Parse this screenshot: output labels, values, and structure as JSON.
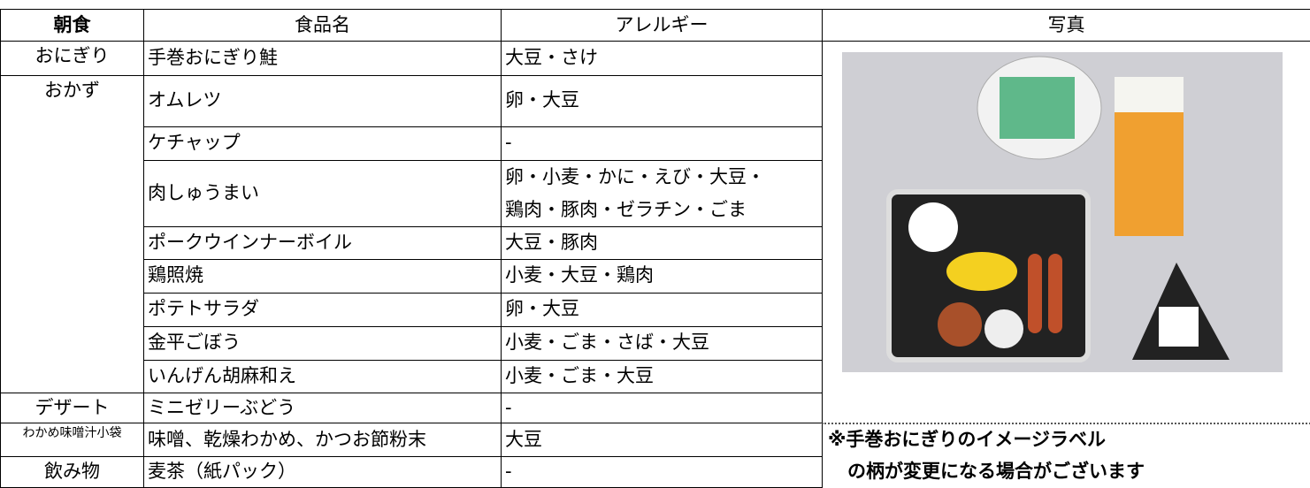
{
  "header": [
    "朝食",
    "食品名",
    "アレルギー",
    "写真"
  ],
  "groups": [
    {
      "label": "おにぎり",
      "items": [
        {
          "name": "手巻おにぎり鮭",
          "allergy": "大豆・さけ"
        }
      ]
    },
    {
      "label": "おかず",
      "items": [
        {
          "name": "オムレツ",
          "allergy": "卵・大豆"
        },
        {
          "name": "ケチャップ",
          "allergy": "-"
        },
        {
          "name": "肉しゅうまい",
          "allergy": [
            "卵・小麦・かに・えび・大豆・",
            "鶏肉・豚肉・ゼラチン・ごま"
          ]
        },
        {
          "name": "ポークウインナーボイル",
          "allergy": "大豆・豚肉"
        },
        {
          "name": "鶏照焼",
          "allergy": "小麦・大豆・鶏肉"
        },
        {
          "name": "ポテトサラダ",
          "allergy": "卵・大豆"
        },
        {
          "name": "金平ごぼう",
          "allergy": "小麦・ごま・さば・大豆"
        },
        {
          "name": "いんげん胡麻和え",
          "allergy": "小麦・ごま・大豆"
        }
      ]
    },
    {
      "label": "デザート",
      "items": [
        {
          "name": "ミニゼリーぶどう",
          "allergy": "-"
        }
      ]
    },
    {
      "label": "わかめ味噌汁小袋",
      "items": [
        {
          "name": "味噌、乾燥わかめ、かつお節粉末",
          "allergy": "大豆"
        }
      ]
    },
    {
      "label": "飲み物",
      "items": [
        {
          "name": "麦茶（紙パック）",
          "allergy": "-"
        }
      ]
    }
  ],
  "note": [
    "※手巻おにぎりのイメージラベル",
    "の柄が変更になる場合がございます"
  ]
}
